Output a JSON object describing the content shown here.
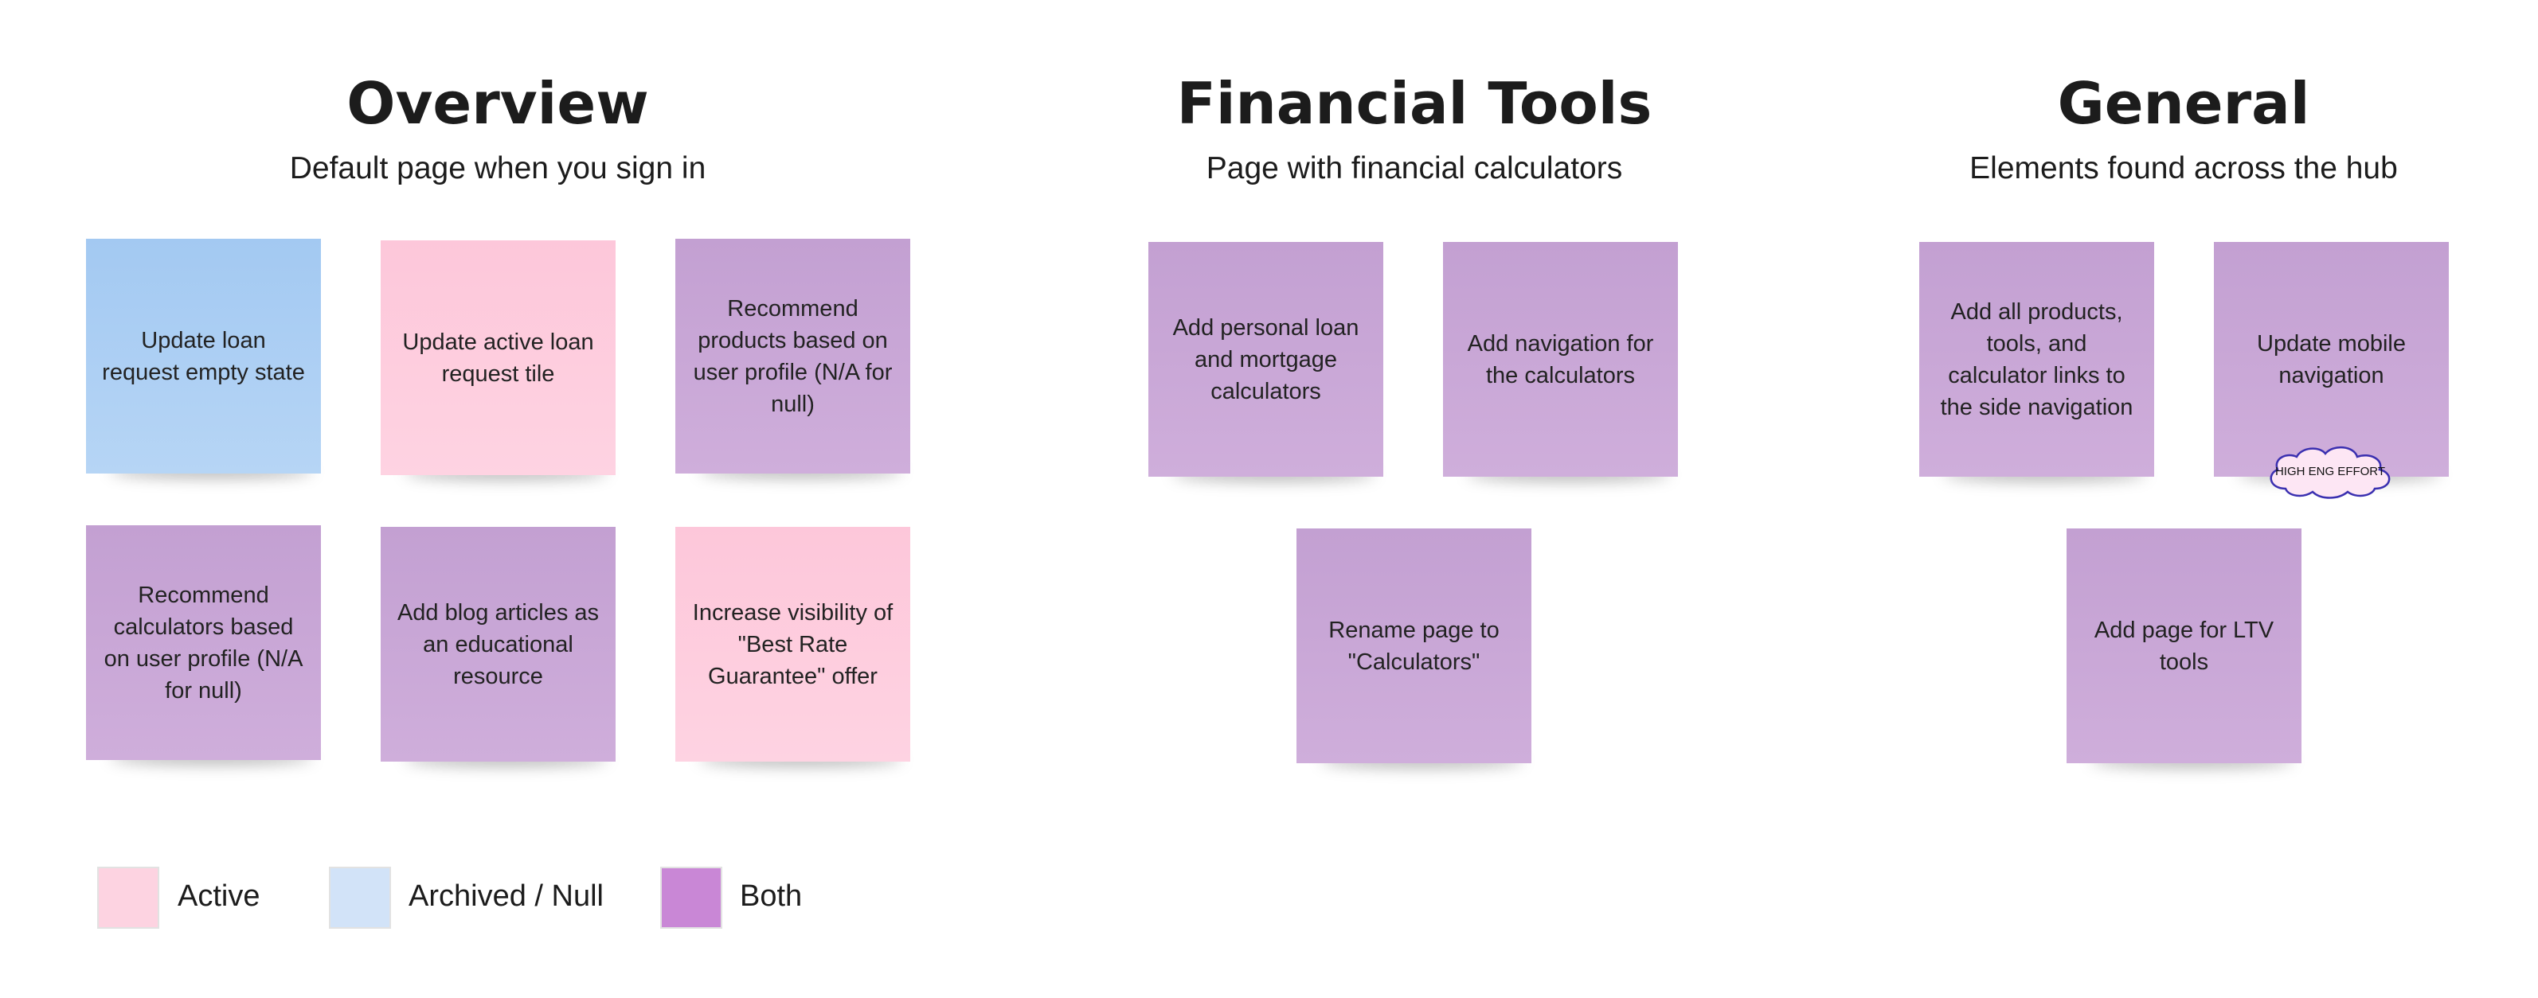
{
  "sections": [
    {
      "title": "Overview",
      "subtitle": "Default page when you sign in"
    },
    {
      "title": "Financial Tools",
      "subtitle": "Page with financial calculators"
    },
    {
      "title": "General",
      "subtitle": "Elements found across the hub"
    }
  ],
  "notes": {
    "overview": [
      {
        "text": "Update loan request empty state",
        "color": "blue"
      },
      {
        "text": "Update active loan request tile",
        "color": "pink"
      },
      {
        "text": "Recommend products based on user profile (N/A for null)",
        "color": "purple"
      },
      {
        "text": "Recommend calculators based on user profile (N/A for null)",
        "color": "purple"
      },
      {
        "text": "Add blog articles as an educational resource",
        "color": "purple"
      },
      {
        "text": "Increase visibility of \"Best Rate Guarantee\" offer",
        "color": "pink"
      }
    ],
    "financial_tools": [
      {
        "text": "Add personal loan and mortgage calculators",
        "color": "purple"
      },
      {
        "text": "Add navigation for the calculators",
        "color": "purple"
      },
      {
        "text": "Rename page to \"Calculators\"",
        "color": "purple"
      }
    ],
    "general": [
      {
        "text": "Add all products, tools, and calculator links to the side navigation",
        "color": "purple"
      },
      {
        "text": "Update mobile navigation",
        "color": "purple"
      },
      {
        "text": "Add page for LTV tools",
        "color": "purple"
      }
    ]
  },
  "tag": {
    "text": "HIGH ENG EFFORT"
  },
  "legend": [
    {
      "label": "Active",
      "color": "#fdd3e1"
    },
    {
      "label": "Archived / Null",
      "color": "#d2e3f8"
    },
    {
      "label": "Both",
      "color": "#c987d6"
    }
  ],
  "colors": {
    "blue": "#a3c9f2",
    "pink": "#fdc7da",
    "purple": "#c3a0d2",
    "tag_border": "#3a2fb0"
  }
}
